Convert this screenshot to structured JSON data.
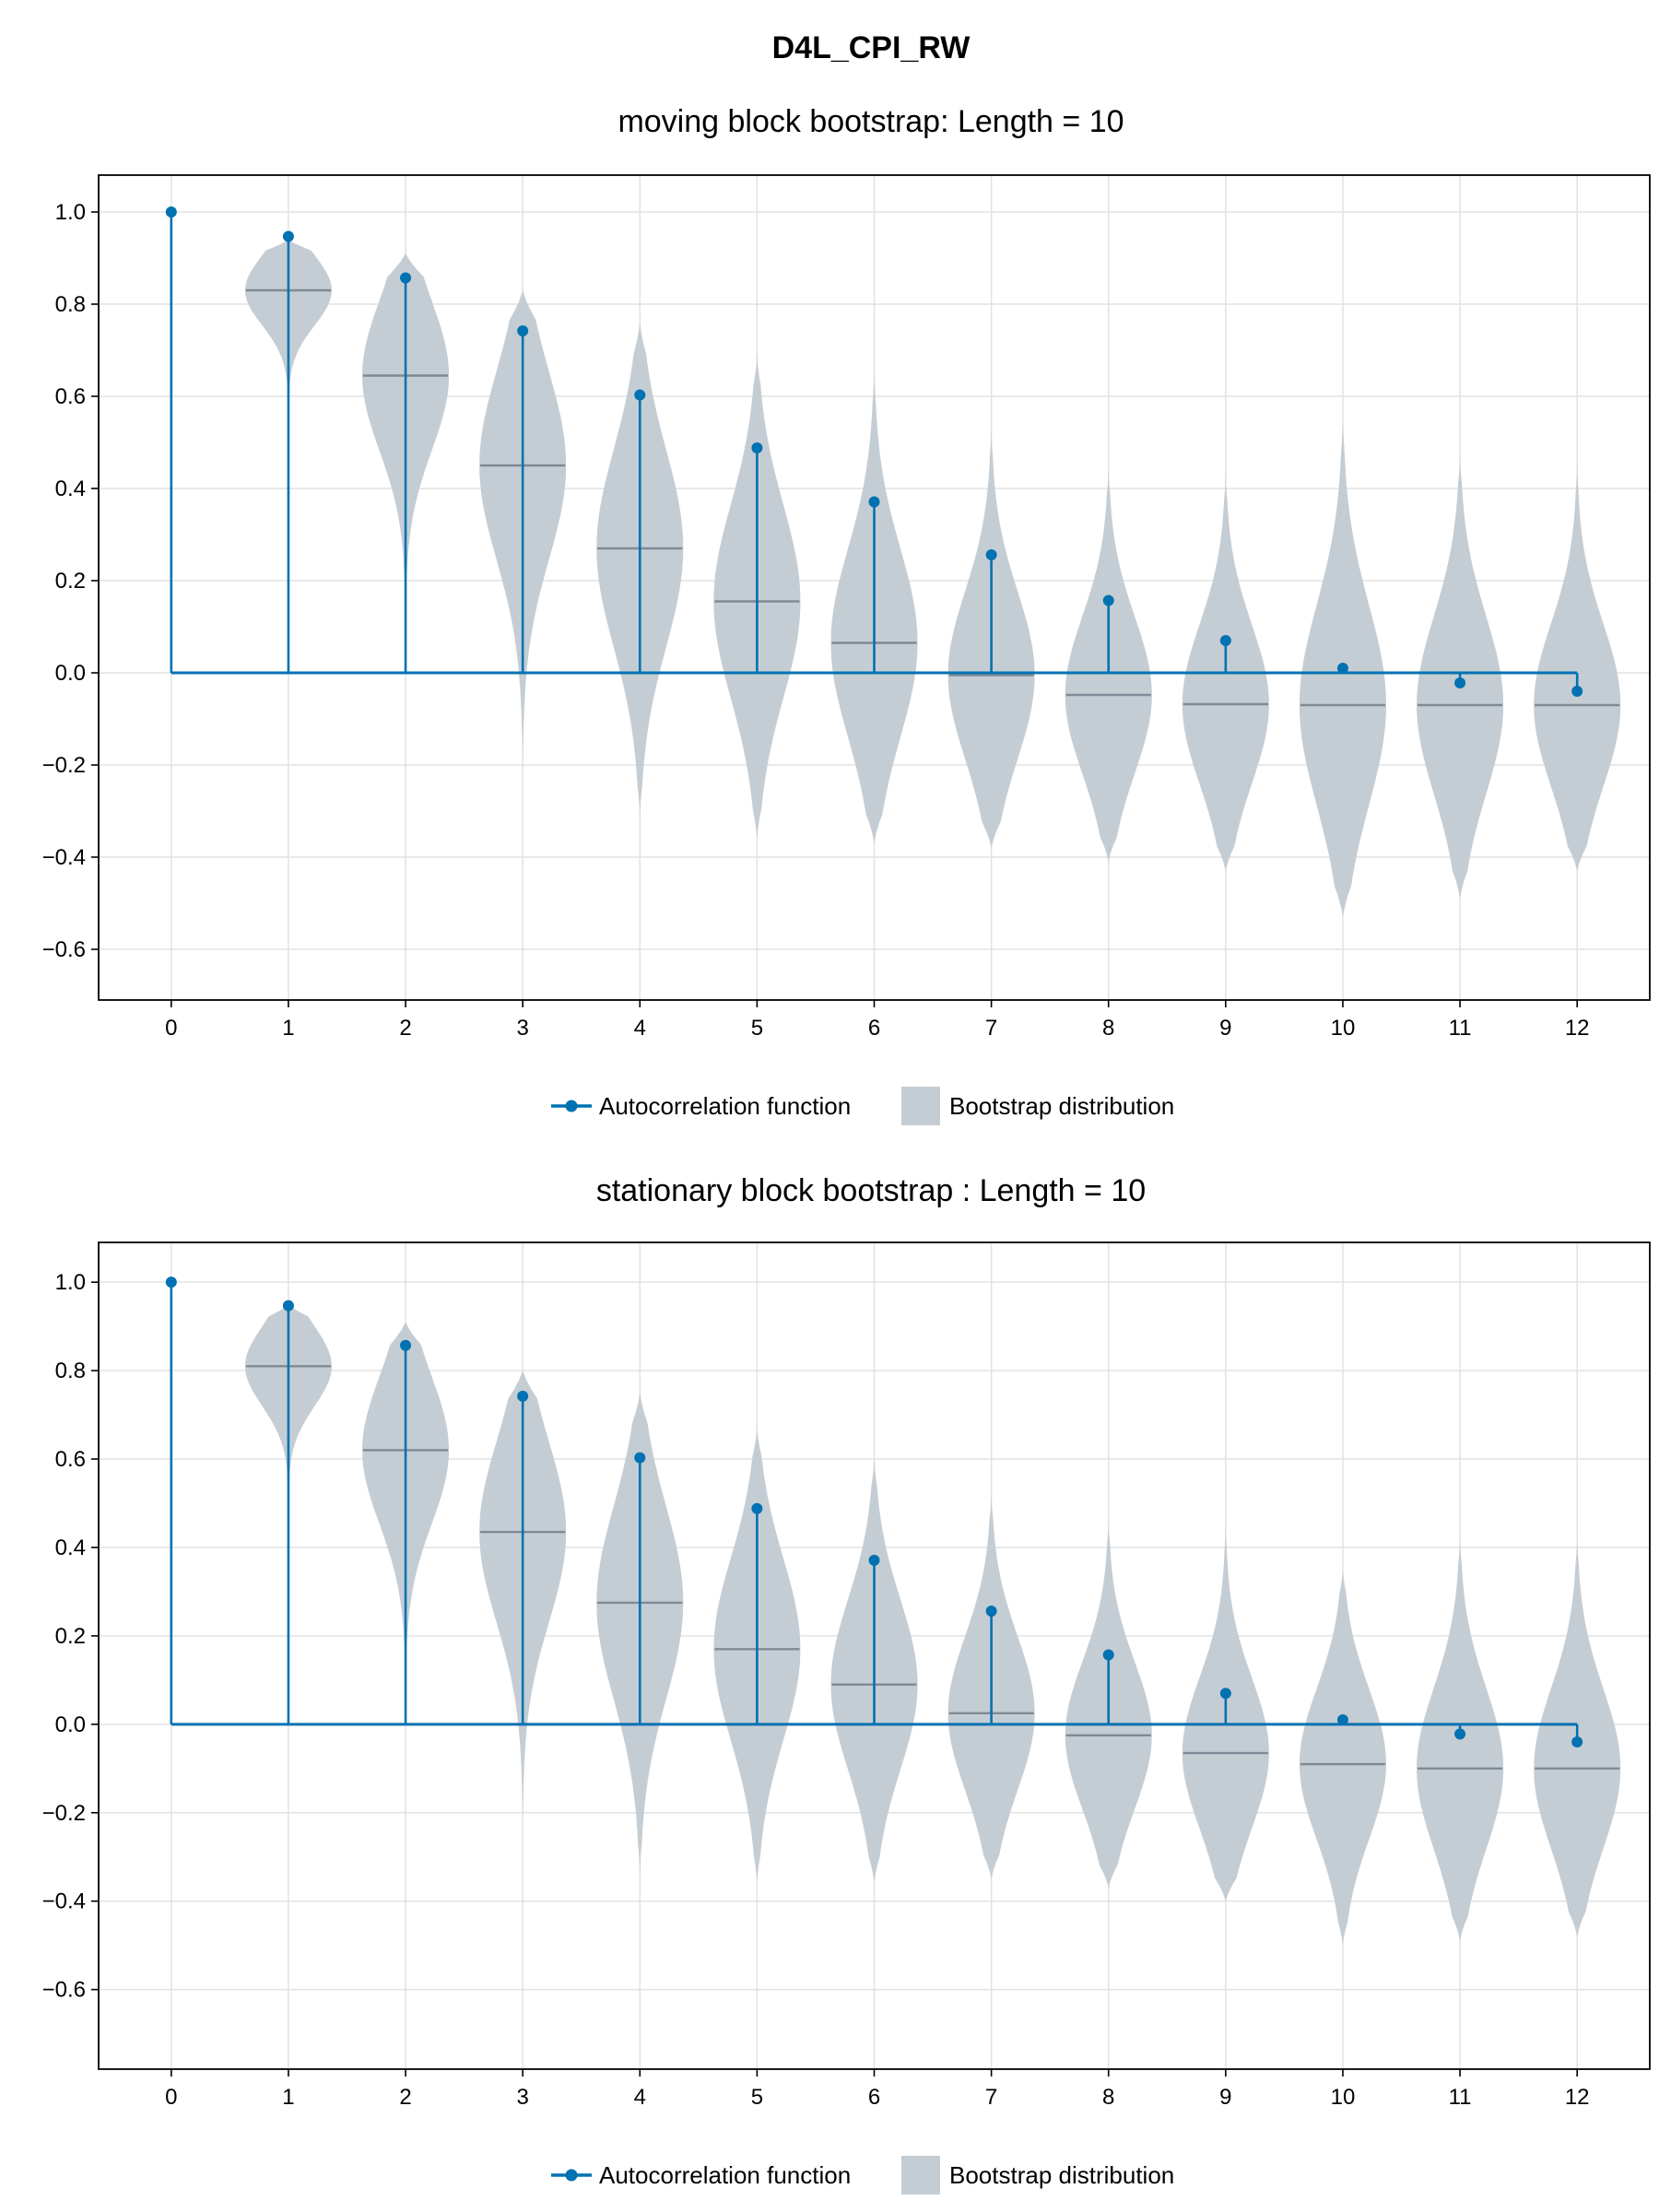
{
  "figure": {
    "title": "D4L_CPI_RW"
  },
  "colors": {
    "acf": "#0072b2",
    "bootstrap_fill": "#c5cdd4",
    "bootstrap_median": "#7e8a95",
    "grid": "#e2e2e2"
  },
  "legend": {
    "acf_label": "Autocorrelation function",
    "bootstrap_label": "Bootstrap distribution"
  },
  "chart_data": [
    {
      "type": "violin+stem",
      "title": "moving block bootstrap: Length = 10",
      "xlabel": "",
      "ylabel": "",
      "x_ticks": [
        0,
        1,
        2,
        3,
        4,
        5,
        6,
        7,
        8,
        9,
        10,
        11,
        12
      ],
      "y_ticks": [
        -0.6,
        -0.4,
        -0.2,
        0.0,
        0.2,
        0.4,
        0.6,
        0.8,
        1.0
      ],
      "xlim": [
        -0.62,
        12.62
      ],
      "ylim": [
        -0.71,
        1.08
      ],
      "grid": true,
      "legend_position": "bottom-center",
      "series": [
        {
          "name": "Autocorrelation function",
          "kind": "stem",
          "lags": [
            0,
            1,
            2,
            3,
            4,
            5,
            6,
            7,
            8,
            9,
            10,
            11,
            12
          ],
          "values": [
            1.0,
            0.947,
            0.857,
            0.742,
            0.603,
            0.488,
            0.371,
            0.256,
            0.157,
            0.07,
            0.01,
            -0.022,
            -0.04
          ]
        },
        {
          "name": "Bootstrap distribution",
          "kind": "violin",
          "lags": [
            1,
            2,
            3,
            4,
            5,
            6,
            7,
            8,
            9,
            10,
            11,
            12
          ],
          "min": [
            0.56,
            0.1,
            -0.19,
            -0.31,
            -0.36,
            -0.37,
            -0.38,
            -0.41,
            -0.43,
            -0.53,
            -0.49,
            -0.43
          ],
          "max": [
            0.94,
            0.91,
            0.83,
            0.76,
            0.69,
            0.65,
            0.53,
            0.44,
            0.43,
            0.55,
            0.47,
            0.45
          ],
          "median": [
            0.83,
            0.645,
            0.45,
            0.27,
            0.155,
            0.065,
            -0.005,
            -0.048,
            -0.068,
            -0.07,
            -0.07,
            -0.07
          ]
        }
      ]
    },
    {
      "type": "violin+stem",
      "title": "stationary block bootstrap : Length = 10",
      "xlabel": "",
      "ylabel": "",
      "x_ticks": [
        0,
        1,
        2,
        3,
        4,
        5,
        6,
        7,
        8,
        9,
        10,
        11,
        12
      ],
      "y_ticks": [
        -0.6,
        -0.4,
        -0.2,
        0.0,
        0.2,
        0.4,
        0.6,
        0.8,
        1.0
      ],
      "xlim": [
        -0.62,
        12.62
      ],
      "ylim": [
        -0.78,
        1.09
      ],
      "grid": true,
      "legend_position": "bottom-center",
      "series": [
        {
          "name": "Autocorrelation function",
          "kind": "stem",
          "lags": [
            0,
            1,
            2,
            3,
            4,
            5,
            6,
            7,
            8,
            9,
            10,
            11,
            12
          ],
          "values": [
            1.0,
            0.947,
            0.857,
            0.742,
            0.603,
            0.488,
            0.371,
            0.256,
            0.157,
            0.07,
            0.01,
            -0.022,
            -0.04
          ]
        },
        {
          "name": "Bootstrap distribution",
          "kind": "violin",
          "lags": [
            1,
            2,
            3,
            4,
            5,
            6,
            7,
            8,
            9,
            10,
            11,
            12
          ],
          "min": [
            0.5,
            0.08,
            -0.22,
            -0.34,
            -0.36,
            -0.36,
            -0.35,
            -0.37,
            -0.4,
            -0.5,
            -0.49,
            -0.48
          ],
          "max": [
            0.95,
            0.91,
            0.8,
            0.75,
            0.67,
            0.6,
            0.52,
            0.46,
            0.45,
            0.35,
            0.42,
            0.42
          ],
          "median": [
            0.81,
            0.62,
            0.435,
            0.275,
            0.17,
            0.09,
            0.025,
            -0.025,
            -0.065,
            -0.09,
            -0.1,
            -0.1
          ]
        }
      ]
    }
  ]
}
